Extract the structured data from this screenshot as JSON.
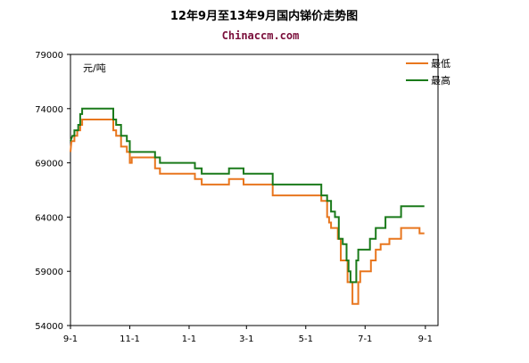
{
  "chart_data": {
    "type": "line",
    "title": "12年9月至13年9月国内锑价走势图",
    "subtitle": "Chinaccm.com",
    "ylabel": "元/吨",
    "xlabel": "",
    "ylim": [
      54000,
      79000
    ],
    "yticks": [
      54000,
      59000,
      64000,
      69000,
      74000,
      79000
    ],
    "xticks": [
      {
        "label": "9-1",
        "x": 0
      },
      {
        "label": "11-1",
        "x": 61
      },
      {
        "label": "1-1",
        "x": 122
      },
      {
        "label": "3-1",
        "x": 181
      },
      {
        "label": "5-1",
        "x": 242
      },
      {
        "label": "7-1",
        "x": 303
      },
      {
        "label": "9-1",
        "x": 365
      }
    ],
    "xlim": [
      0,
      378
    ],
    "grid": false,
    "legend_position": "top-right",
    "colors": {
      "min": "#e8761e",
      "max": "#1a7a1a"
    },
    "series": [
      {
        "name": "最低",
        "color": "#e8761e",
        "points": [
          [
            0,
            70000
          ],
          [
            1,
            71000
          ],
          [
            4,
            71000
          ],
          [
            4,
            71500
          ],
          [
            7,
            71500
          ],
          [
            7,
            72000
          ],
          [
            10,
            72000
          ],
          [
            10,
            72500
          ],
          [
            12,
            72500
          ],
          [
            12,
            73000
          ],
          [
            44,
            73000
          ],
          [
            44,
            72000
          ],
          [
            47,
            72000
          ],
          [
            47,
            71500
          ],
          [
            52,
            71500
          ],
          [
            52,
            70500
          ],
          [
            58,
            70500
          ],
          [
            58,
            70000
          ],
          [
            61,
            70000
          ],
          [
            61,
            69000
          ],
          [
            63,
            69000
          ],
          [
            63,
            69500
          ],
          [
            87,
            69500
          ],
          [
            87,
            68500
          ],
          [
            92,
            68500
          ],
          [
            92,
            68000
          ],
          [
            128,
            68000
          ],
          [
            128,
            67500
          ],
          [
            135,
            67500
          ],
          [
            135,
            67000
          ],
          [
            163,
            67000
          ],
          [
            163,
            67500
          ],
          [
            178,
            67500
          ],
          [
            178,
            67000
          ],
          [
            208,
            67000
          ],
          [
            208,
            66000
          ],
          [
            258,
            66000
          ],
          [
            258,
            65500
          ],
          [
            264,
            65500
          ],
          [
            264,
            64000
          ],
          [
            266,
            64000
          ],
          [
            266,
            63500
          ],
          [
            268,
            63500
          ],
          [
            268,
            63000
          ],
          [
            275,
            63000
          ],
          [
            275,
            62000
          ],
          [
            278,
            62000
          ],
          [
            278,
            60000
          ],
          [
            285,
            60000
          ],
          [
            285,
            58000
          ],
          [
            290,
            58000
          ],
          [
            290,
            56000
          ],
          [
            296,
            56000
          ],
          [
            296,
            58000
          ],
          [
            298,
            58000
          ],
          [
            298,
            59000
          ],
          [
            309,
            59000
          ],
          [
            309,
            60000
          ],
          [
            314,
            60000
          ],
          [
            314,
            61000
          ],
          [
            319,
            61000
          ],
          [
            319,
            61500
          ],
          [
            328,
            61500
          ],
          [
            328,
            62000
          ],
          [
            340,
            62000
          ],
          [
            340,
            63000
          ],
          [
            359,
            63000
          ],
          [
            359,
            62500
          ],
          [
            364,
            62500
          ]
        ]
      },
      {
        "name": "最高",
        "color": "#1a7a1a",
        "points": [
          [
            0,
            71000
          ],
          [
            2,
            71500
          ],
          [
            4,
            71500
          ],
          [
            4,
            72000
          ],
          [
            8,
            72000
          ],
          [
            8,
            72500
          ],
          [
            10,
            72500
          ],
          [
            10,
            73500
          ],
          [
            12,
            73500
          ],
          [
            12,
            74000
          ],
          [
            44,
            74000
          ],
          [
            44,
            73000
          ],
          [
            47,
            73000
          ],
          [
            47,
            72500
          ],
          [
            52,
            72500
          ],
          [
            52,
            71500
          ],
          [
            58,
            71500
          ],
          [
            58,
            71000
          ],
          [
            61,
            71000
          ],
          [
            61,
            70000
          ],
          [
            87,
            70000
          ],
          [
            87,
            69500
          ],
          [
            92,
            69500
          ],
          [
            92,
            69000
          ],
          [
            128,
            69000
          ],
          [
            128,
            68500
          ],
          [
            135,
            68500
          ],
          [
            135,
            68000
          ],
          [
            163,
            68000
          ],
          [
            163,
            68500
          ],
          [
            178,
            68500
          ],
          [
            178,
            68000
          ],
          [
            208,
            68000
          ],
          [
            208,
            67000
          ],
          [
            258,
            67000
          ],
          [
            258,
            66000
          ],
          [
            264,
            66000
          ],
          [
            264,
            65500
          ],
          [
            268,
            65500
          ],
          [
            268,
            64500
          ],
          [
            272,
            64500
          ],
          [
            272,
            64000
          ],
          [
            276,
            64000
          ],
          [
            276,
            62000
          ],
          [
            280,
            62000
          ],
          [
            280,
            61500
          ],
          [
            284,
            61500
          ],
          [
            284,
            60000
          ],
          [
            286,
            60000
          ],
          [
            286,
            59000
          ],
          [
            288,
            59000
          ],
          [
            288,
            58000
          ],
          [
            294,
            58000
          ],
          [
            294,
            60000
          ],
          [
            296,
            60000
          ],
          [
            296,
            61000
          ],
          [
            308,
            61000
          ],
          [
            308,
            62000
          ],
          [
            314,
            62000
          ],
          [
            314,
            63000
          ],
          [
            324,
            63000
          ],
          [
            324,
            64000
          ],
          [
            340,
            64000
          ],
          [
            340,
            65000
          ],
          [
            364,
            65000
          ]
        ]
      }
    ]
  }
}
